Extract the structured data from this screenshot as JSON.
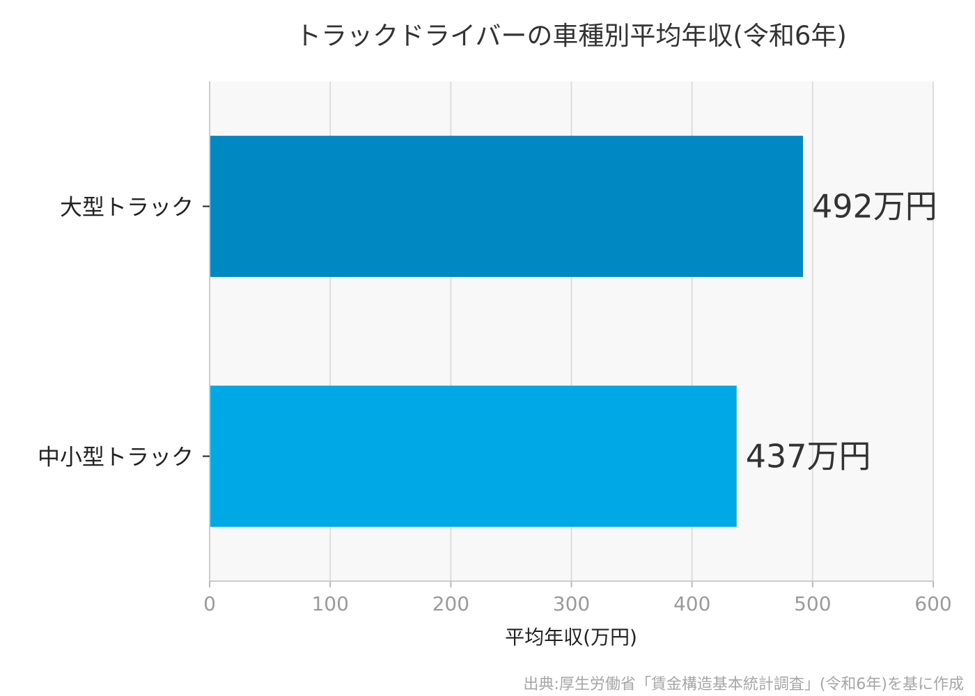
{
  "chart_data": {
    "type": "bar",
    "orientation": "horizontal",
    "title": "トラックドライバーの車種別平均年収(令和6年)",
    "categories": [
      "大型トラック",
      "中小型トラック"
    ],
    "values": [
      492,
      437
    ],
    "data_labels": [
      "492万円",
      "437万円"
    ],
    "colors": [
      "#0088c2",
      "#00a9e6"
    ],
    "xlabel": "平均年収(万円)",
    "ylabel": "",
    "xlim": [
      0,
      600
    ],
    "xticks": [
      0,
      100,
      200,
      300,
      400,
      500,
      600
    ],
    "xtick_labels": [
      "0",
      "100",
      "200",
      "300",
      "400",
      "500",
      "600"
    ],
    "grid": "vertical",
    "source": "出典:厚生労働省「賃金構造基本統計調査」(令和6年)を基に作成"
  }
}
